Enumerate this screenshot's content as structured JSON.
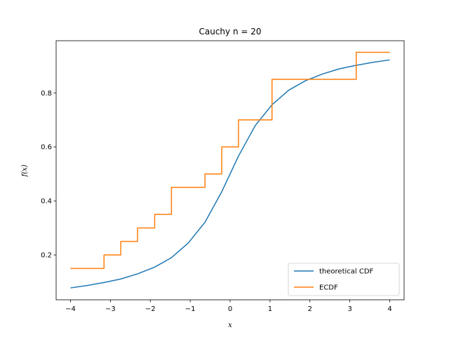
{
  "chart_data": {
    "type": "line",
    "title": "Cauchy n = 20",
    "xlabel": "x",
    "ylabel": "f(x)",
    "xlim": [
      -4.36,
      4.36
    ],
    "ylim": [
      0.034,
      0.993
    ],
    "xticks": [
      -4,
      -3,
      -2,
      -1,
      0,
      1,
      2,
      3,
      4
    ],
    "xtick_labels": [
      "−4",
      "−3",
      "−2",
      "−1",
      "0",
      "1",
      "2",
      "3",
      "4"
    ],
    "yticks": [
      0.2,
      0.4,
      0.6,
      0.8
    ],
    "ytick_labels": [
      "0.2",
      "0.4",
      "0.6",
      "0.8"
    ],
    "grid": false,
    "legend_position": "lower-right",
    "series": [
      {
        "name": "theoretical CDF",
        "color": "#1f77b4",
        "style": "line",
        "x": [
          -4.0,
          -3.58,
          -3.16,
          -2.74,
          -2.32,
          -1.89,
          -1.47,
          -1.05,
          -0.63,
          -0.21,
          0.21,
          0.63,
          1.05,
          1.47,
          1.89,
          2.32,
          2.74,
          3.16,
          3.58,
          4.0
        ],
        "y": [
          0.078,
          0.087,
          0.098,
          0.111,
          0.13,
          0.155,
          0.19,
          0.244,
          0.321,
          0.434,
          0.566,
          0.679,
          0.756,
          0.81,
          0.845,
          0.87,
          0.889,
          0.902,
          0.913,
          0.922
        ]
      },
      {
        "name": "ECDF",
        "color": "#ff7f0e",
        "style": "step-post",
        "x": [
          -4.0,
          -3.16,
          -2.74,
          -2.32,
          -1.89,
          -1.47,
          -0.63,
          -0.21,
          0.21,
          1.05,
          3.16,
          4.0
        ],
        "y": [
          0.15,
          0.2,
          0.25,
          0.3,
          0.35,
          0.45,
          0.5,
          0.6,
          0.7,
          0.85,
          0.95,
          0.95
        ]
      }
    ]
  }
}
